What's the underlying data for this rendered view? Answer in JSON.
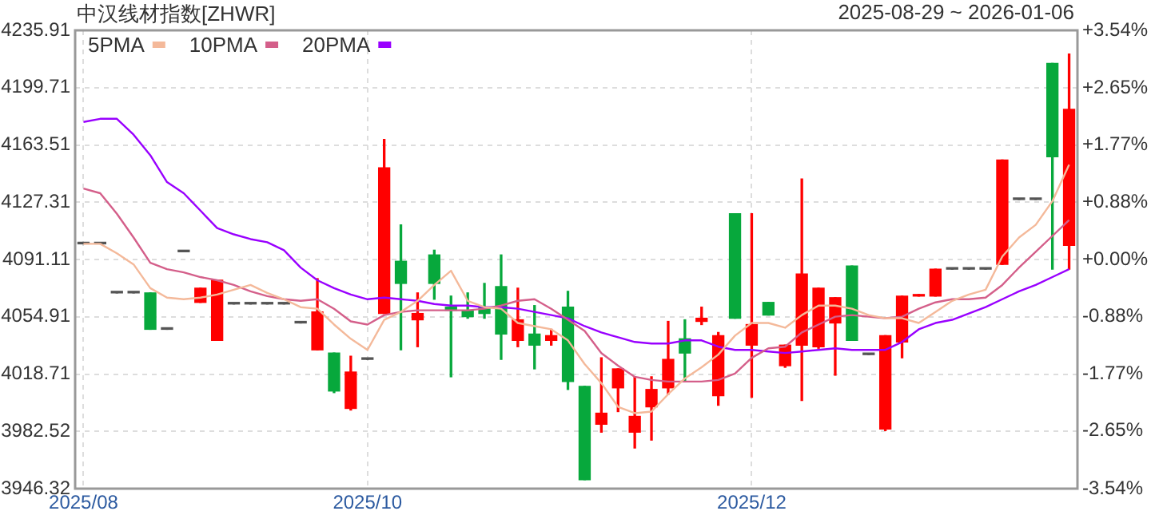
{
  "chart_data": {
    "type": "candlestick",
    "title": "中汉线材指数[ZHWR]",
    "subtitle": "2025-08-29 ~ 2026-01-06",
    "categories": [
      "2025/08",
      null,
      null,
      null,
      null,
      null,
      null,
      null,
      null,
      null,
      null,
      null,
      null,
      null,
      null,
      null,
      null,
      "2025/10",
      null,
      null,
      null,
      null,
      null,
      null,
      null,
      null,
      null,
      null,
      null,
      null,
      null,
      null,
      null,
      null,
      null,
      null,
      null,
      null,
      null,
      null,
      "2025/12",
      null,
      null,
      null,
      null,
      null,
      null,
      null,
      null,
      null,
      null,
      null,
      null,
      null,
      null,
      null,
      null,
      null,
      null,
      null
    ],
    "ohlc": [
      [
        4101,
        4101,
        4101,
        4101
      ],
      [
        4101,
        4101,
        4101,
        4101
      ],
      [
        4070,
        4070,
        4070,
        4070
      ],
      [
        4070,
        4070,
        4070,
        4070
      ],
      [
        4070,
        4070,
        4047,
        4047
      ],
      [
        4047,
        4047,
        4047,
        4047
      ],
      [
        4096,
        4096,
        4096,
        4096
      ],
      [
        4064,
        4073,
        4064,
        4073
      ],
      [
        4040,
        4078,
        4040,
        4078
      ],
      [
        4063,
        4063,
        4063,
        4063
      ],
      [
        4063,
        4063,
        4063,
        4063
      ],
      [
        4063,
        4063,
        4063,
        4063
      ],
      [
        4063,
        4063,
        4063,
        4063
      ],
      [
        4051,
        4051,
        4051,
        4051
      ],
      [
        4034,
        4079,
        4034,
        4058
      ],
      [
        4032,
        4032,
        4007,
        4008
      ],
      [
        3997,
        4030,
        3996,
        4020
      ],
      [
        4028,
        4028,
        4028,
        4028
      ],
      [
        4057,
        4167,
        4057,
        4149
      ],
      [
        4090,
        4113,
        4034,
        4076
      ],
      [
        4053,
        4070,
        4036,
        4057
      ],
      [
        4094,
        4097,
        4066,
        4076
      ],
      [
        4061,
        4068,
        4017,
        4059
      ],
      [
        4059,
        4070,
        4054,
        4055
      ],
      [
        4061,
        4076,
        4054,
        4057
      ],
      [
        4074,
        4094,
        4028,
        4044
      ],
      [
        4040,
        4073,
        4036,
        4053
      ],
      [
        4044,
        4062,
        4022,
        4037
      ],
      [
        4040,
        4047,
        4037,
        4043
      ],
      [
        4061,
        4071,
        4009,
        4014
      ],
      [
        4011,
        4011,
        3952,
        3952
      ],
      [
        3987,
        4029,
        3982,
        3994
      ],
      [
        4010,
        4022,
        3995,
        4022
      ],
      [
        3982,
        4017,
        3972,
        3992
      ],
      [
        3998,
        4017,
        3977,
        4009
      ],
      [
        4010,
        4052,
        4006,
        4028
      ],
      [
        4041,
        4053,
        4014,
        4032
      ],
      [
        4052,
        4061,
        4050,
        4054
      ],
      [
        4005,
        4045,
        3999,
        4043
      ],
      [
        4120,
        4120,
        4054,
        4054
      ],
      [
        4037,
        4120,
        4004,
        4050
      ],
      [
        4064,
        4064,
        4056,
        4056
      ],
      [
        4024,
        4037,
        4023,
        4037
      ],
      [
        4037,
        4142,
        4002,
        4082
      ],
      [
        4036,
        4073,
        4035,
        4073
      ],
      [
        4051,
        4067,
        4018,
        4067
      ],
      [
        4087,
        4087,
        4040,
        4040
      ],
      [
        4031,
        4031,
        4031,
        4031
      ],
      [
        3984,
        4043,
        3983,
        4043
      ],
      [
        4039,
        4068,
        4029,
        4068
      ],
      [
        4068,
        4069,
        4068,
        4069
      ],
      [
        4068,
        4085,
        4068,
        4085
      ],
      [
        4085,
        4085,
        4085,
        4085
      ],
      [
        4085,
        4085,
        4085,
        4085
      ],
      [
        4085,
        4085,
        4085,
        4085
      ],
      [
        4088,
        4154,
        4088,
        4154
      ],
      [
        4129,
        4129,
        4129,
        4129
      ],
      [
        4129,
        4129,
        4129,
        4129
      ],
      [
        4215,
        4215,
        4085,
        4156
      ],
      [
        4100,
        4221,
        4085,
        4186
      ]
    ],
    "colors": [
      "#555555",
      "#555555",
      "#555555",
      "#555555",
      "#07a83c",
      "#555555",
      "#555555",
      "#ff0000",
      "#ff0000",
      "#555555",
      "#555555",
      "#555555",
      "#555555",
      "#555555",
      "#ff0000",
      "#07a83c",
      "#ff0000",
      "#555555",
      "#ff0000",
      "#07a83c",
      "#ff0000",
      "#07a83c",
      "#07a83c",
      "#07a83c",
      "#07a83c",
      "#07a83c",
      "#ff0000",
      "#07a83c",
      "#ff0000",
      "#07a83c",
      "#07a83c",
      "#ff0000",
      "#ff0000",
      "#ff0000",
      "#ff0000",
      "#ff0000",
      "#07a83c",
      "#ff0000",
      "#ff0000",
      "#07a83c",
      "#ff0000",
      "#07a83c",
      "#ff0000",
      "#ff0000",
      "#ff0000",
      "#ff0000",
      "#07a83c",
      "#555555",
      "#ff0000",
      "#ff0000",
      "#ff0000",
      "#ff0000",
      "#555555",
      "#555555",
      "#555555",
      "#ff0000",
      "#555555",
      "#555555",
      "#07a83c",
      "#ff0000"
    ],
    "series": [
      {
        "name": "5PMA",
        "type": "line",
        "color": "#f4b99a",
        "values": [
          4101,
          4101,
          4095,
          4088,
          4073,
          4067,
          4066,
          4067,
          4069,
          4072,
          4075,
          4070,
          4066,
          4061,
          4060,
          4050,
          4041,
          4034,
          4053,
          4058,
          4065,
          4075,
          4084,
          4065,
          4061,
          4060,
          4051,
          4049,
          4047,
          4040,
          4025,
          4013,
          3998,
          3994,
          3995,
          4006,
          4016,
          4023,
          4031,
          4043,
          4051,
          4051,
          4048,
          4056,
          4062,
          4062,
          4060,
          4056,
          4054,
          4054,
          4051,
          4058,
          4065,
          4069,
          4072,
          4093,
          4105,
          4113,
          4128,
          4151
        ]
      },
      {
        "name": "10PMA",
        "type": "line",
        "color": "#d45f8a",
        "values": [
          4136,
          4133,
          4120,
          4105,
          4089,
          4085,
          4083,
          4080,
          4078,
          4075,
          4071,
          4068,
          4066,
          4065,
          4066,
          4060,
          4052,
          4050,
          4056,
          4058,
          4059,
          4059,
          4059,
          4059,
          4060,
          4062,
          4065,
          4066,
          4060,
          4053,
          4046,
          4032,
          4024,
          4017,
          4015,
          4014,
          4014,
          4014,
          4015,
          4019,
          4029,
          4035,
          4036,
          4045,
          4050,
          4055,
          4056,
          4055,
          4054,
          4055,
          4060,
          4064,
          4066,
          4066,
          4067,
          4075,
          4086,
          4096,
          4106,
          4116
        ]
      },
      {
        "name": "20PMA",
        "type": "line",
        "color": "#9900ff",
        "values": [
          4178,
          4180,
          4180,
          4170,
          4157,
          4140,
          4133,
          4122,
          4111,
          4107,
          4104,
          4102,
          4097,
          4086,
          4078,
          4073,
          4069,
          4066,
          4067,
          4066,
          4065,
          4063,
          4062,
          4062,
          4061,
          4061,
          4060,
          4058,
          4056,
          4054,
          4049,
          4045,
          4042,
          4039,
          4038,
          4038,
          4040,
          4040,
          4036,
          4034,
          4034,
          4033,
          4032,
          4033,
          4034,
          4035,
          4034,
          4034,
          4034,
          4039,
          4047,
          4051,
          4053,
          4057,
          4061,
          4066,
          4071,
          4075,
          4080,
          4085
        ]
      }
    ],
    "ylim": [
      3946.32,
      4235.91
    ],
    "yticks": [
      3946.32,
      3982.52,
      4018.71,
      4054.91,
      4091.11,
      4127.31,
      4163.51,
      4199.71,
      4235.91
    ],
    "y2lim": [
      -3.54,
      3.54
    ],
    "y2ticks": [
      {
        "value": -3.54,
        "label": "-3.54%"
      },
      {
        "value": -2.65,
        "label": "-2.65%"
      },
      {
        "value": -1.77,
        "label": "-1.77%"
      },
      {
        "value": -0.88,
        "label": "-0.88%"
      },
      {
        "value": 0,
        "label": "+0.00%"
      },
      {
        "value": 0.88,
        "label": "+0.88%"
      },
      {
        "value": 1.77,
        "label": "+1.77%"
      },
      {
        "value": 2.65,
        "label": "+2.65%"
      },
      {
        "value": 3.54,
        "label": "+3.54%"
      }
    ],
    "grid": true,
    "legend": "top left"
  }
}
